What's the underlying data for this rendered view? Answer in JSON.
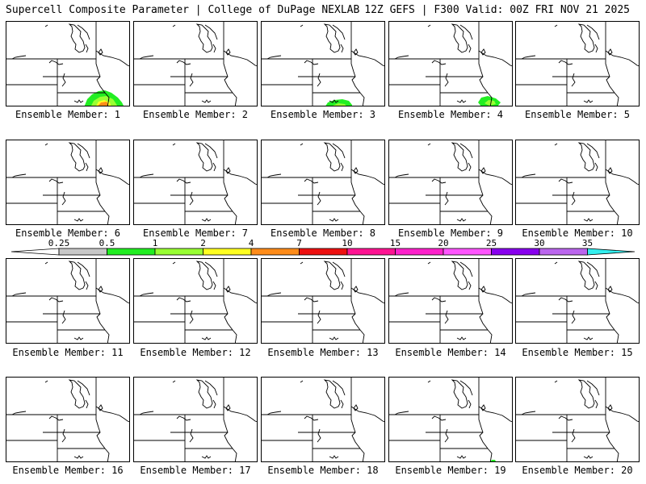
{
  "header": {
    "left": "Supercell Composite Parameter | College of DuPage NEXLAB",
    "right": "12Z GEFS | F300 Valid: 00Z FRI NOV 21 2025"
  },
  "colorbar": {
    "labels": [
      "0.25",
      "0.5",
      "1",
      "2",
      "4",
      "7",
      "10",
      "15",
      "20",
      "25",
      "30",
      "35"
    ],
    "colors": [
      "#ffffff",
      "#c8c8c8",
      "#22ee22",
      "#99ff33",
      "#ffff22",
      "#ff8c1a",
      "#ee1111",
      "#ff1493",
      "#ff22cc",
      "#ff55ff",
      "#8800ee",
      "#bb66ee",
      "#33eeee"
    ]
  },
  "panels": [
    {
      "caption": "Ensemble Member: 1",
      "icon": "scp-panel-map",
      "field": "large"
    },
    {
      "caption": "Ensemble Member: 2",
      "icon": "scp-panel-map",
      "field": "none"
    },
    {
      "caption": "Ensemble Member: 3",
      "icon": "scp-panel-map",
      "field": "mid"
    },
    {
      "caption": "Ensemble Member: 4",
      "icon": "scp-panel-map",
      "field": "small"
    },
    {
      "caption": "Ensemble Member: 5",
      "icon": "scp-panel-map",
      "field": "none"
    },
    {
      "caption": "Ensemble Member: 6",
      "icon": "scp-panel-map",
      "field": "none"
    },
    {
      "caption": "Ensemble Member: 7",
      "icon": "scp-panel-map",
      "field": "none"
    },
    {
      "caption": "Ensemble Member: 8",
      "icon": "scp-panel-map",
      "field": "none"
    },
    {
      "caption": "Ensemble Member: 9",
      "icon": "scp-panel-map",
      "field": "none"
    },
    {
      "caption": "Ensemble Member: 10",
      "icon": "scp-panel-map",
      "field": "none"
    },
    {
      "caption": "Ensemble Member: 11",
      "icon": "scp-panel-map",
      "field": "none"
    },
    {
      "caption": "Ensemble Member: 12",
      "icon": "scp-panel-map",
      "field": "none"
    },
    {
      "caption": "Ensemble Member: 13",
      "icon": "scp-panel-map",
      "field": "none"
    },
    {
      "caption": "Ensemble Member: 14",
      "icon": "scp-panel-map",
      "field": "none"
    },
    {
      "caption": "Ensemble Member: 15",
      "icon": "scp-panel-map",
      "field": "none"
    },
    {
      "caption": "Ensemble Member: 16",
      "icon": "scp-panel-map",
      "field": "none"
    },
    {
      "caption": "Ensemble Member: 17",
      "icon": "scp-panel-map",
      "field": "none"
    },
    {
      "caption": "Ensemble Member: 18",
      "icon": "scp-panel-map",
      "field": "none"
    },
    {
      "caption": "Ensemble Member: 19",
      "icon": "scp-panel-map",
      "field": "tiny"
    },
    {
      "caption": "Ensemble Member: 20",
      "icon": "scp-panel-map",
      "field": "none"
    }
  ]
}
